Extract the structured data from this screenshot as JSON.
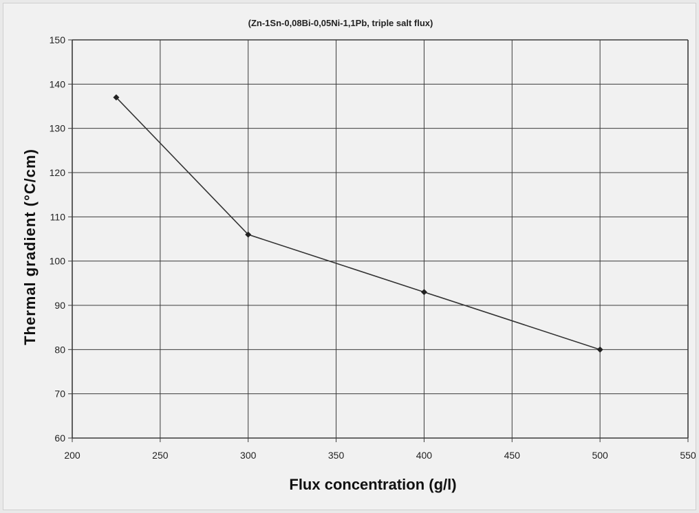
{
  "chart_data": {
    "type": "line",
    "title": "(Zn-1Sn-0,08Bi-0,05Ni-1,1Pb, triple salt flux)",
    "xlabel": "Flux concentration (g/l)",
    "ylabel": "Thermal gradient (°C/cm)",
    "xlim": [
      200,
      550
    ],
    "ylim": [
      60,
      150
    ],
    "xticks": [
      200,
      250,
      300,
      350,
      400,
      450,
      500,
      550
    ],
    "yticks": [
      60,
      70,
      80,
      90,
      100,
      110,
      120,
      130,
      140,
      150
    ],
    "grid": true,
    "legend": "none",
    "x": [
      225,
      300,
      400,
      500
    ],
    "y": [
      137,
      106,
      93,
      80
    ],
    "colors": {
      "line": "#333333",
      "marker": "#222222",
      "grid": "#3a3a3a",
      "background": "#f1f1f1"
    }
  }
}
